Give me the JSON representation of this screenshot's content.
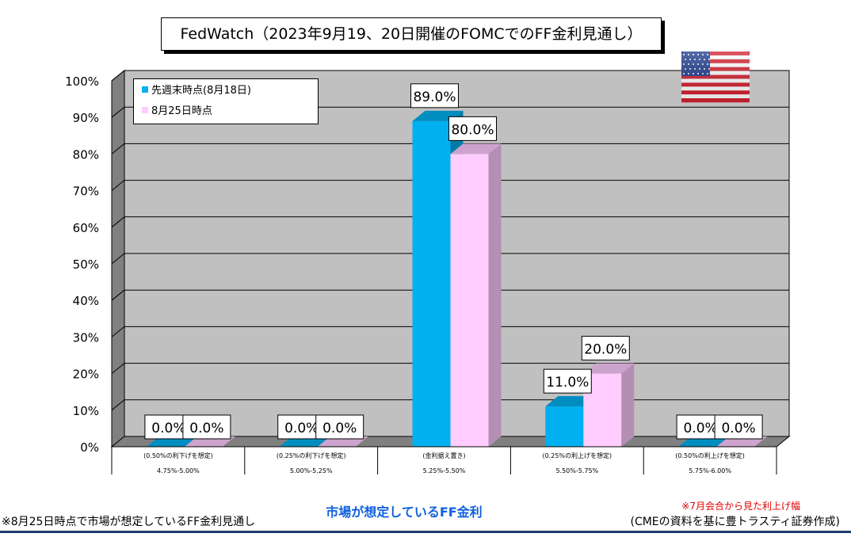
{
  "title": "FedWatch（2023年9月19、20日開催のFOMCでのFF金利見通し）",
  "footer": {
    "left_note": "※8月25日時点で市場が想定しているFF金利見通し",
    "center_caption": "市場が想定しているFF金利",
    "right_note": "※7月会合から見た利上げ幅",
    "source": "(CMEの資料を基に豊トラスティ証券作成)"
  },
  "flag_icon": "us-flag-icon",
  "chart_data": {
    "type": "bar",
    "categories": [
      "4.75%-5.00%",
      "5.00%-5.25%",
      "5.25%-5.50%",
      "5.50%-5.75%",
      "5.75%-6.00%"
    ],
    "category_sublabels": [
      "(0.50%の利下げを想定)",
      "(0.25%の利下げを想定)",
      "(金利据え置き)",
      "(0.25%の利上げを想定)",
      "(0.50%の利上げを想定)"
    ],
    "series": [
      {
        "name": "先週末時点(8月18日)",
        "values": [
          0.0,
          0.0,
          89.0,
          11.0,
          0.0
        ],
        "color": "#00b0f0"
      },
      {
        "name": "8月25日時点",
        "values": [
          0.0,
          0.0,
          80.0,
          20.0,
          0.0
        ],
        "color": "#ffccff"
      }
    ],
    "data_labels": [
      [
        "0.0%",
        "0.0%",
        "89.0%",
        "11.0%",
        "0.0%"
      ],
      [
        "0.0%",
        "0.0%",
        "80.0%",
        "20.0%",
        "0.0%"
      ]
    ],
    "y_ticks": [
      "0%",
      "10%",
      "20%",
      "30%",
      "40%",
      "50%",
      "60%",
      "70%",
      "80%",
      "90%",
      "100%"
    ],
    "ylim": [
      0,
      100
    ],
    "grid": true,
    "legend_position": "top-left",
    "colors": {
      "wall": "#c0c0c0",
      "floor": "#808080",
      "side": "#808080"
    }
  }
}
